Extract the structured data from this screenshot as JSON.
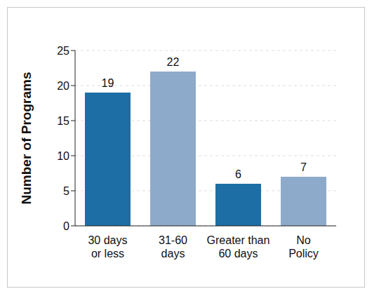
{
  "chart_data": {
    "type": "bar",
    "y_label": "Number of Programs",
    "categories": [
      "30 days or less",
      "31-60 days",
      "Greater than 60 days",
      "No Policy"
    ],
    "values": [
      19,
      22,
      6,
      7
    ],
    "colors": [
      "#1c6ea4",
      "#8eaacb",
      "#1c6ea4",
      "#8eaacb"
    ],
    "ylim": [
      0,
      25
    ],
    "yticks": [
      0,
      5,
      10,
      15,
      20,
      25
    ],
    "grid": true,
    "data_labels": true
  }
}
